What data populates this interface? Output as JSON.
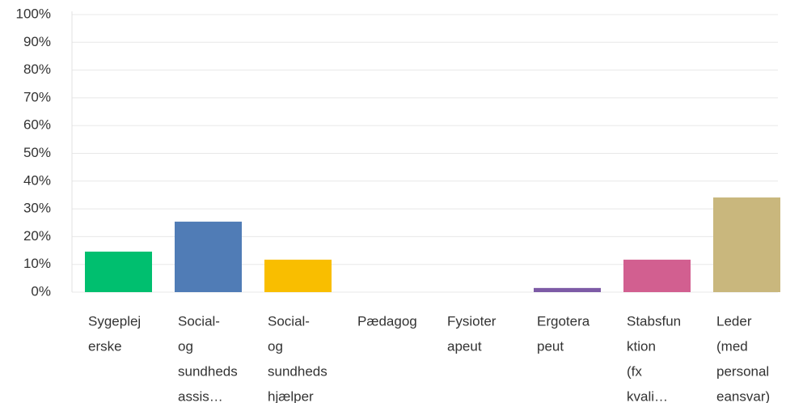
{
  "chart_data": {
    "type": "bar",
    "categories": [
      [
        "Sygeplej",
        "erske"
      ],
      [
        "Social-",
        "og",
        "sundheds",
        "assis…"
      ],
      [
        "Social-",
        "og",
        "sundheds",
        "hjælper"
      ],
      [
        "Pædagog"
      ],
      [
        "Fysioter",
        "apeut"
      ],
      [
        "Ergotera",
        "peut"
      ],
      [
        "Stabsfun",
        "ktion",
        "(fx",
        "kvali…"
      ],
      [
        "Leder",
        "(med",
        "personal",
        "eansvar)"
      ]
    ],
    "values": [
      14.6,
      25.4,
      11.7,
      0,
      0,
      1.5,
      11.7,
      34.1
    ],
    "colors": [
      "#00bf6f",
      "#507cb6",
      "#f9be00",
      null,
      null,
      "#7d5ba6",
      "#d25f90",
      "#c9b77d"
    ],
    "ylim": [
      0,
      100
    ],
    "yticks": [
      {
        "value": 0,
        "label": "0%"
      },
      {
        "value": 10,
        "label": "10%"
      },
      {
        "value": 20,
        "label": "20%"
      },
      {
        "value": 30,
        "label": "30%"
      },
      {
        "value": 40,
        "label": "40%"
      },
      {
        "value": 50,
        "label": "50%"
      },
      {
        "value": 60,
        "label": "60%"
      },
      {
        "value": 70,
        "label": "70%"
      },
      {
        "value": 80,
        "label": "80%"
      },
      {
        "value": 90,
        "label": "90%"
      },
      {
        "value": 100,
        "label": "100%"
      }
    ],
    "grid": true
  }
}
